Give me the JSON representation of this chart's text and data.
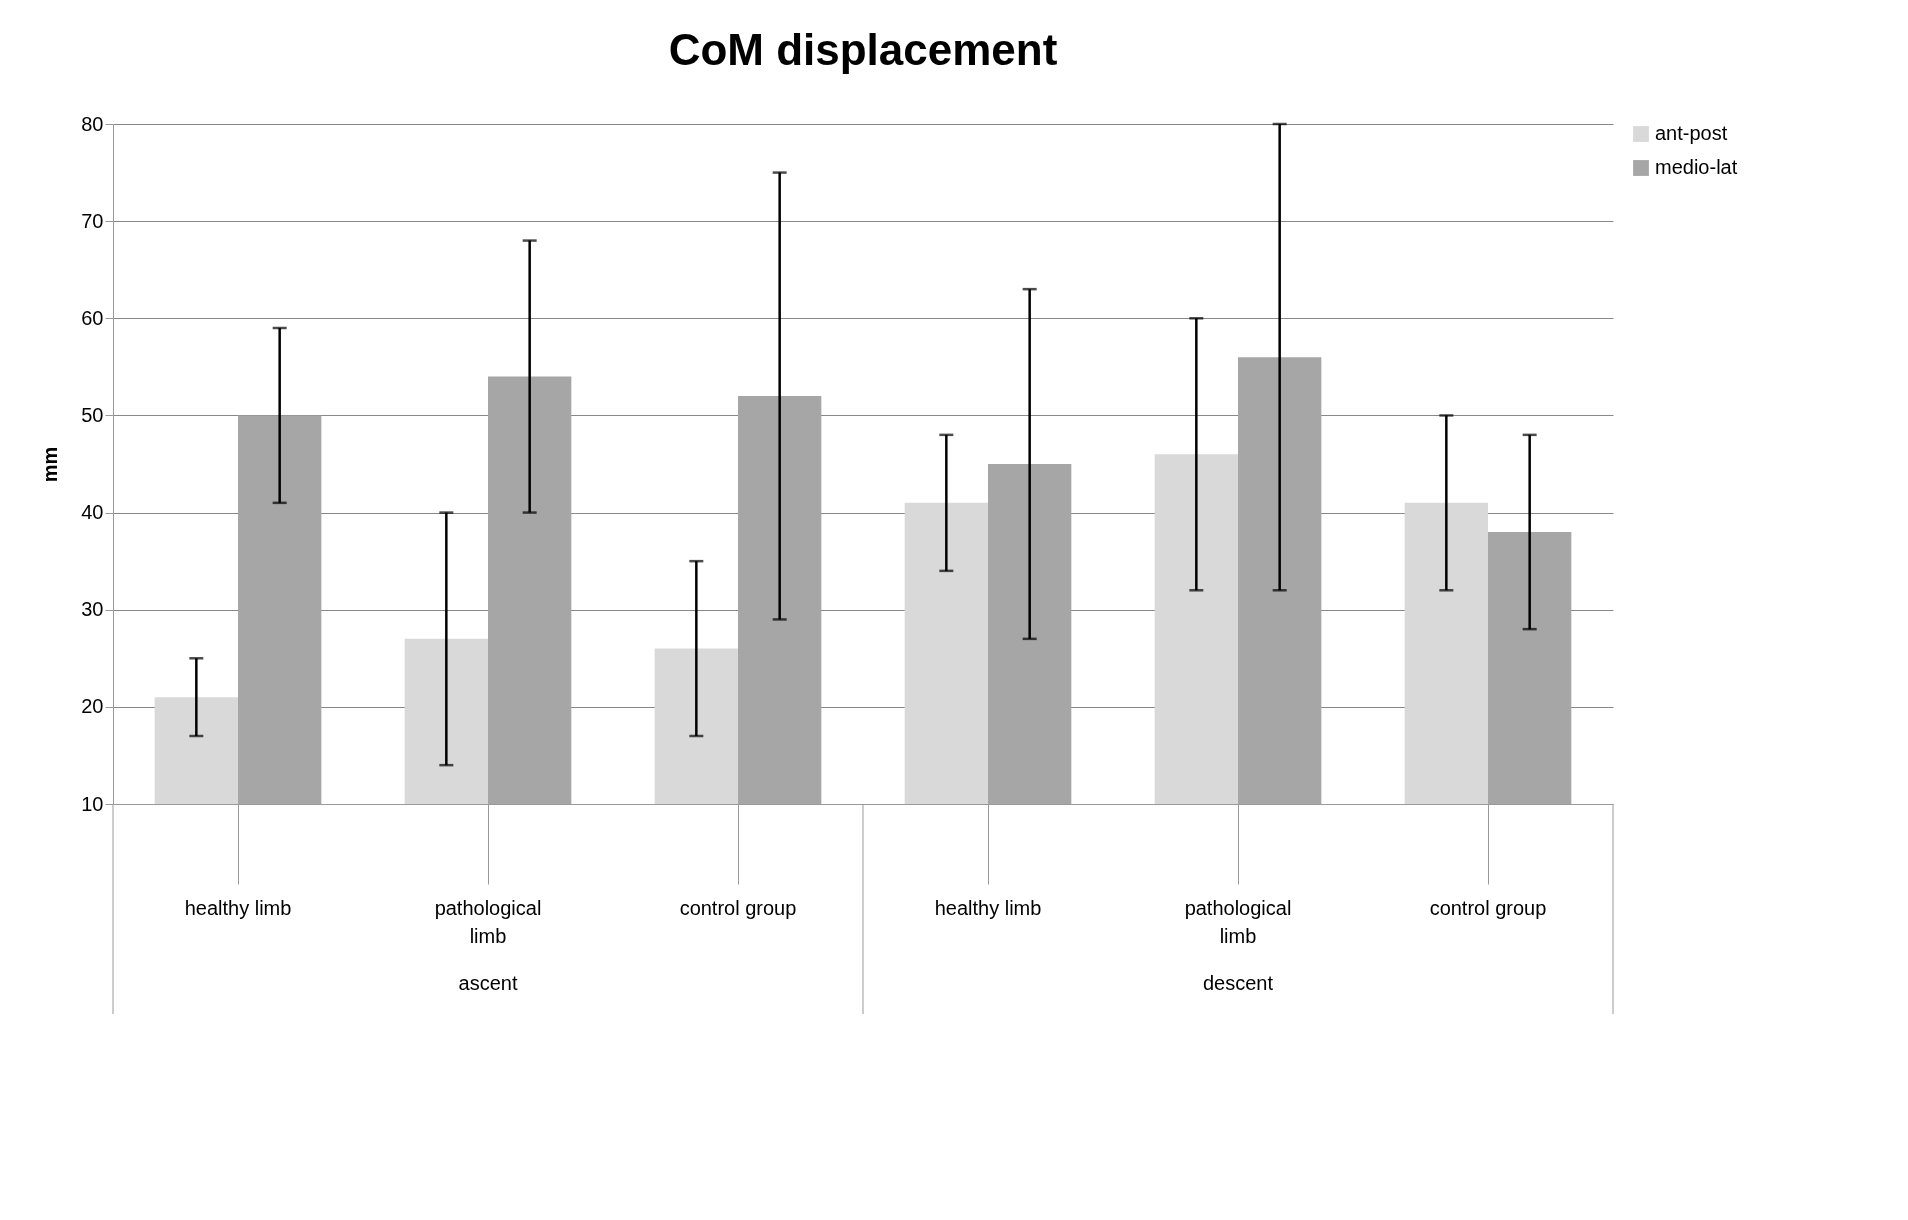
{
  "chart_data": {
    "type": "bar",
    "title": "CoM displacement",
    "ylabel": "mm",
    "categories": [
      "healthy limb",
      "pathological limb",
      "control group",
      "healthy limb",
      "pathological limb",
      "control group"
    ],
    "series": [
      {
        "name": "ant-post",
        "color": "#d9d9d9",
        "values": [
          21,
          27,
          26,
          41,
          46,
          41
        ],
        "errors": [
          [
            17,
            25
          ],
          [
            14,
            40
          ],
          [
            17,
            35
          ],
          [
            34,
            48
          ],
          [
            32,
            60
          ],
          [
            32,
            50
          ]
        ]
      },
      {
        "name": "medio-lat",
        "color": "#a6a6a6",
        "values": [
          50,
          54,
          52,
          45,
          56,
          38
        ],
        "errors": [
          [
            41,
            59
          ],
          [
            40,
            68
          ],
          [
            29,
            75
          ],
          [
            27,
            63
          ],
          [
            32,
            80
          ],
          [
            28,
            48
          ]
        ]
      }
    ],
    "annotations": [
      "ascent",
      "descent"
    ],
    "ylim": [
      10,
      80
    ],
    "yticks": [
      10,
      20,
      30,
      40,
      50,
      60,
      70,
      80
    ],
    "grid": "y",
    "legend": "right"
  }
}
